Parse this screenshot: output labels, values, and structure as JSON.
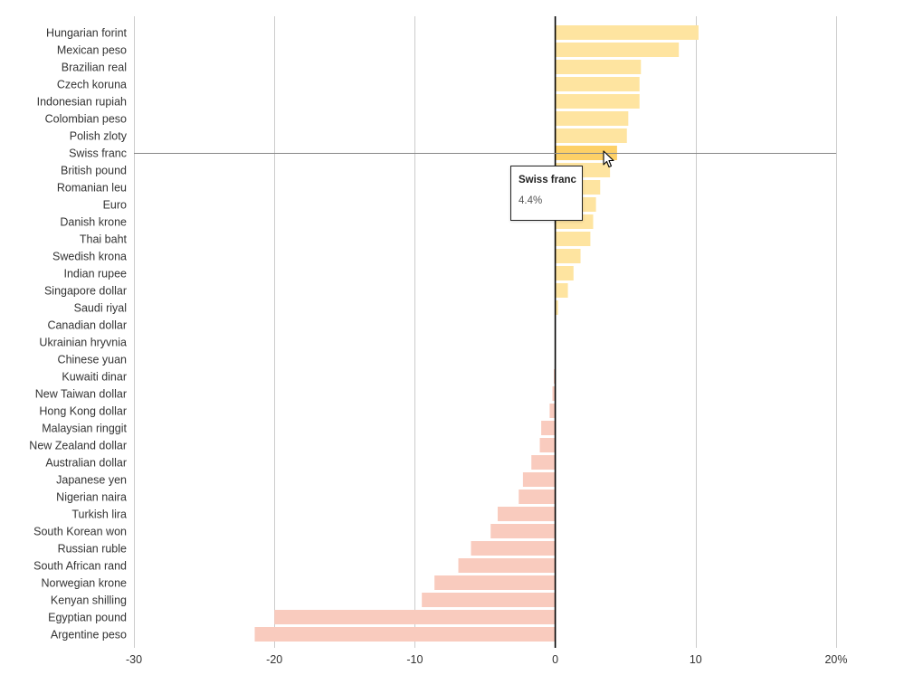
{
  "chart_data": {
    "type": "bar",
    "orientation": "horizontal",
    "title": "",
    "xlabel": "",
    "ylabel": "",
    "xlim": [
      -30,
      20
    ],
    "xticks": [
      -30,
      -20,
      -10,
      0,
      10,
      20
    ],
    "xtick_labels": [
      "-30",
      "-20",
      "-10",
      "0",
      "10",
      "20%"
    ],
    "grid": true,
    "categories": [
      "Hungarian forint",
      "Mexican peso",
      "Brazilian real",
      "Czech koruna",
      "Indonesian rupiah",
      "Colombian peso",
      "Polish zloty",
      "Swiss franc",
      "British pound",
      "Romanian leu",
      "Euro",
      "Danish krone",
      "Thai baht",
      "Swedish krona",
      "Indian rupee",
      "Singapore dollar",
      "Saudi riyal",
      "Canadian dollar",
      "Ukrainian hryvnia",
      "Chinese yuan",
      "Kuwaiti dinar",
      "New Taiwan dollar",
      "Hong Kong dollar",
      "Malaysian ringgit",
      "New Zealand dollar",
      "Australian dollar",
      "Japanese yen",
      "Nigerian naira",
      "Turkish lira",
      "South Korean won",
      "Russian ruble",
      "South African rand",
      "Norwegian krone",
      "Kenyan shilling",
      "Egyptian pound",
      "Argentine peso"
    ],
    "values": [
      10.2,
      8.8,
      6.1,
      6.0,
      6.0,
      5.2,
      5.1,
      4.4,
      3.9,
      3.2,
      2.9,
      2.7,
      2.5,
      1.8,
      1.3,
      0.9,
      0.2,
      0.0,
      0.0,
      0.0,
      -0.1,
      -0.2,
      -0.4,
      -1.0,
      -1.1,
      -1.7,
      -2.3,
      -2.6,
      -4.1,
      -4.6,
      -6.0,
      -6.9,
      -8.6,
      -9.5,
      -20.0,
      -21.4
    ],
    "highlighted": "Swiss franc",
    "colors": {
      "positive": "#fee4a0",
      "positive_highlight": "#fdd067",
      "negative": "#f9cbbe",
      "grid": "#cccccc",
      "zero_line": "#000000",
      "crosshair": "#888888"
    }
  },
  "tooltip": {
    "title": "Swiss franc",
    "value": "4.4%"
  }
}
